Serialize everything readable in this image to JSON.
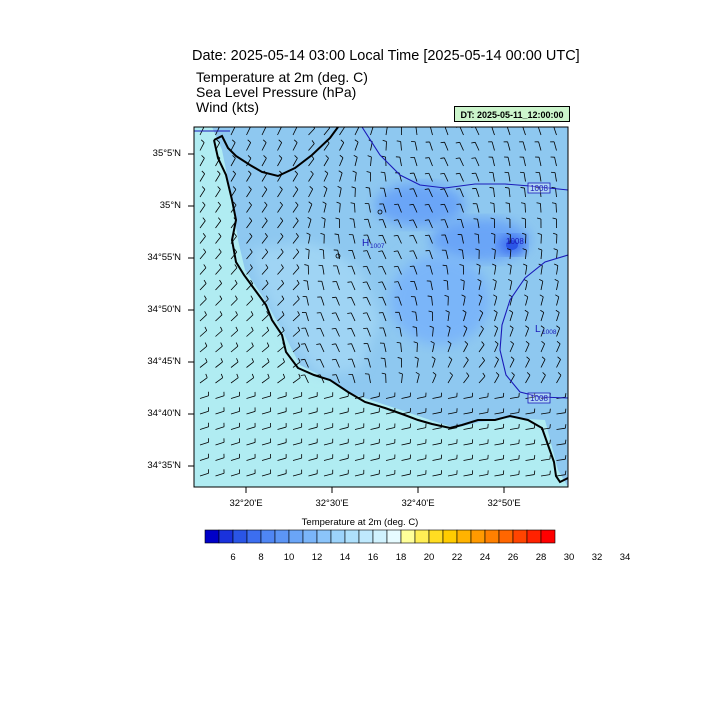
{
  "header": {
    "title": "Date: 2025-05-14  03:00 Local Time [2025-05-14  00:00 UTC]",
    "fields": [
      "Temperature at 2m   (deg. C)",
      "Sea Level Pressure   (hPa)",
      "Wind   (kts)"
    ],
    "run_label": "DT: 2025-05-11_12:00:00"
  },
  "axes": {
    "lat_labels": [
      "35°5'N",
      "35°N",
      "34°55'N",
      "34°50'N",
      "34°45'N",
      "34°40'N",
      "34°35'N"
    ],
    "lon_labels": [
      "32°20'E",
      "32°30'E",
      "32°40'E",
      "32°50'E"
    ]
  },
  "map": {
    "pressure_contours": [
      "1008",
      "1008",
      "1008"
    ],
    "highs": [
      {
        "label": "H",
        "value": "1007"
      }
    ],
    "lows": [
      {
        "label": "L",
        "value": "1008"
      }
    ]
  },
  "colorbar": {
    "title": "Temperature at 2m  (deg. C)",
    "labels": [
      "6",
      "8",
      "10",
      "12",
      "14",
      "16",
      "18",
      "20",
      "22",
      "24",
      "26",
      "28",
      "30",
      "32",
      "34"
    ],
    "colors": [
      "#0000c8",
      "#1a32dc",
      "#2a55e6",
      "#3c6ef0",
      "#4f86f4",
      "#5c95f5",
      "#6aa5f7",
      "#7ab5f9",
      "#8bc4fa",
      "#9cd3fb",
      "#aee0fc",
      "#bfe9fd",
      "#d0f2fe",
      "#e6fbff",
      "#ffff99",
      "#ffee55",
      "#ffdd22",
      "#ffcc00",
      "#ffb300",
      "#ff9a00",
      "#ff8000",
      "#ff6600",
      "#ff4400",
      "#ff2200",
      "#ff0000"
    ],
    "land_color": "#b0ecf2",
    "sea_color": "#8ec8f0",
    "coast_color": "#000000",
    "contour_color": "#1a1ab8"
  }
}
